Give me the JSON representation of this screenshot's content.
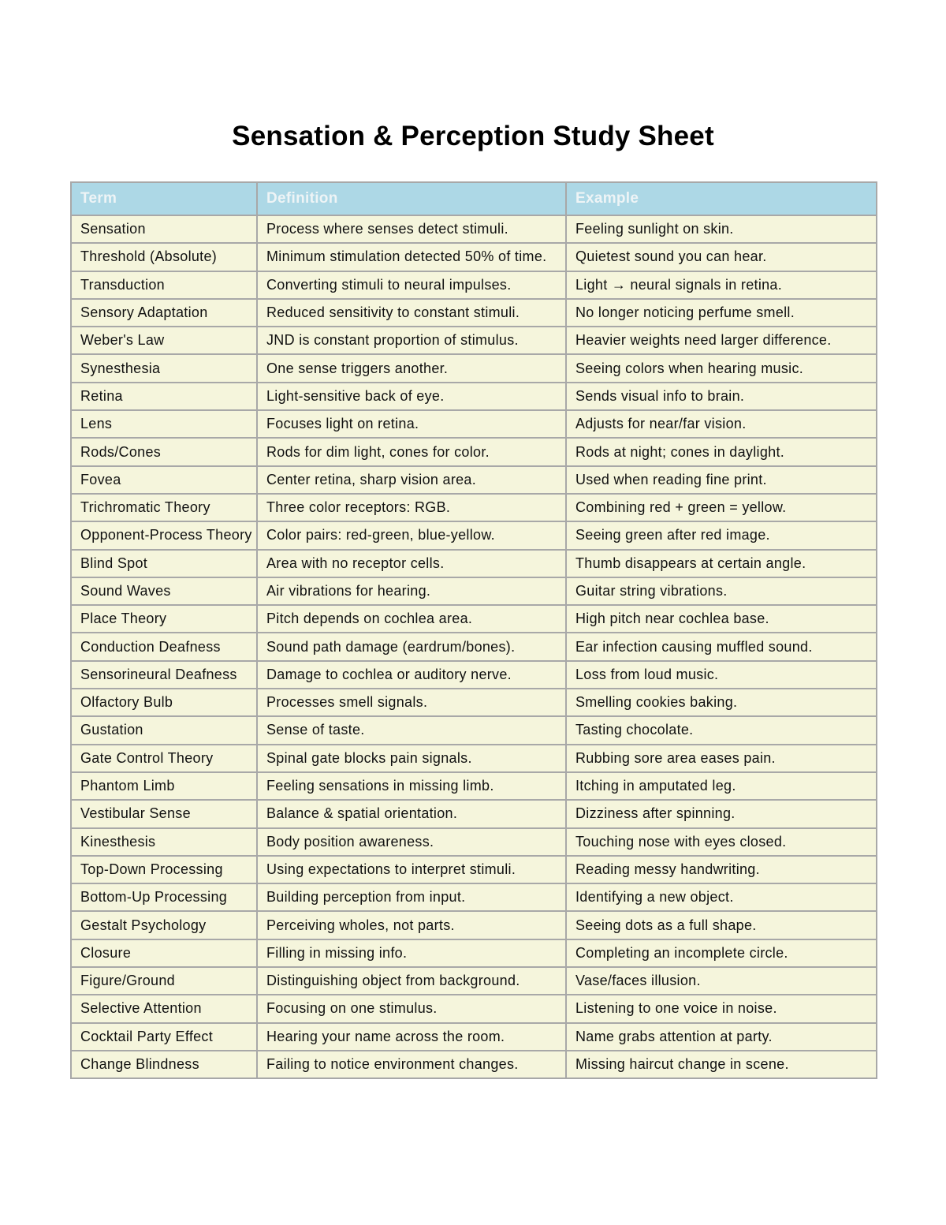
{
  "title": "Sensation & Perception Study Sheet",
  "colors": {
    "header_bg": "#add8e6",
    "row_bg": "#f5f5dc",
    "border": "#a8a8a8"
  },
  "table": {
    "headers": [
      "Term",
      "Definition",
      "Example"
    ],
    "rows": [
      [
        "Sensation",
        "Process where senses detect stimuli.",
        "Feeling sunlight on skin."
      ],
      [
        "Threshold (Absolute)",
        "Minimum stimulation detected 50% of time.",
        "Quietest sound you can hear."
      ],
      [
        "Transduction",
        "Converting stimuli to neural impulses.",
        "Light → neural signals in retina."
      ],
      [
        "Sensory Adaptation",
        "Reduced sensitivity to constant stimuli.",
        "No longer noticing perfume smell."
      ],
      [
        "Weber's Law",
        "JND is constant proportion of stimulus.",
        "Heavier weights need larger difference."
      ],
      [
        "Synesthesia",
        "One sense triggers another.",
        "Seeing colors when hearing music."
      ],
      [
        "Retina",
        "Light-sensitive back of eye.",
        "Sends visual info to brain."
      ],
      [
        "Lens",
        "Focuses light on retina.",
        "Adjusts for near/far vision."
      ],
      [
        "Rods/Cones",
        "Rods for dim light, cones for color.",
        "Rods at night; cones in daylight."
      ],
      [
        "Fovea",
        "Center retina, sharp vision area.",
        "Used when reading fine print."
      ],
      [
        "Trichromatic Theory",
        "Three color receptors: RGB.",
        "Combining red + green = yellow."
      ],
      [
        "Opponent-Process Theory",
        "Color pairs: red-green, blue-yellow.",
        "Seeing green after red image."
      ],
      [
        "Blind Spot",
        "Area with no receptor cells.",
        "Thumb disappears at certain angle."
      ],
      [
        "Sound Waves",
        "Air vibrations for hearing.",
        "Guitar string vibrations."
      ],
      [
        "Place Theory",
        "Pitch depends on cochlea area.",
        "High pitch near cochlea base."
      ],
      [
        "Conduction Deafness",
        "Sound path damage (eardrum/bones).",
        "Ear infection causing muffled sound."
      ],
      [
        "Sensorineural Deafness",
        "Damage to cochlea or auditory nerve.",
        "Loss from loud music."
      ],
      [
        "Olfactory Bulb",
        "Processes smell signals.",
        "Smelling cookies baking."
      ],
      [
        "Gustation",
        "Sense of taste.",
        "Tasting chocolate."
      ],
      [
        "Gate Control Theory",
        "Spinal gate blocks pain signals.",
        "Rubbing sore area eases pain."
      ],
      [
        "Phantom Limb",
        "Feeling sensations in missing limb.",
        "Itching in amputated leg."
      ],
      [
        "Vestibular Sense",
        "Balance & spatial orientation.",
        "Dizziness after spinning."
      ],
      [
        "Kinesthesis",
        "Body position awareness.",
        "Touching nose with eyes closed."
      ],
      [
        "Top-Down Processing",
        "Using expectations to interpret stimuli.",
        "Reading messy handwriting."
      ],
      [
        "Bottom-Up Processing",
        "Building perception from input.",
        "Identifying a new object."
      ],
      [
        "Gestalt Psychology",
        "Perceiving wholes, not parts.",
        "Seeing dots as a full shape."
      ],
      [
        "Closure",
        "Filling in missing info.",
        "Completing an incomplete circle."
      ],
      [
        "Figure/Ground",
        "Distinguishing object from background.",
        "Vase/faces illusion."
      ],
      [
        "Selective Attention",
        "Focusing on one stimulus.",
        "Listening to one voice in noise."
      ],
      [
        "Cocktail Party Effect",
        "Hearing your name across the room.",
        "Name grabs attention at party."
      ],
      [
        "Change Blindness",
        "Failing to notice environment changes.",
        "Missing haircut change in scene."
      ]
    ]
  }
}
